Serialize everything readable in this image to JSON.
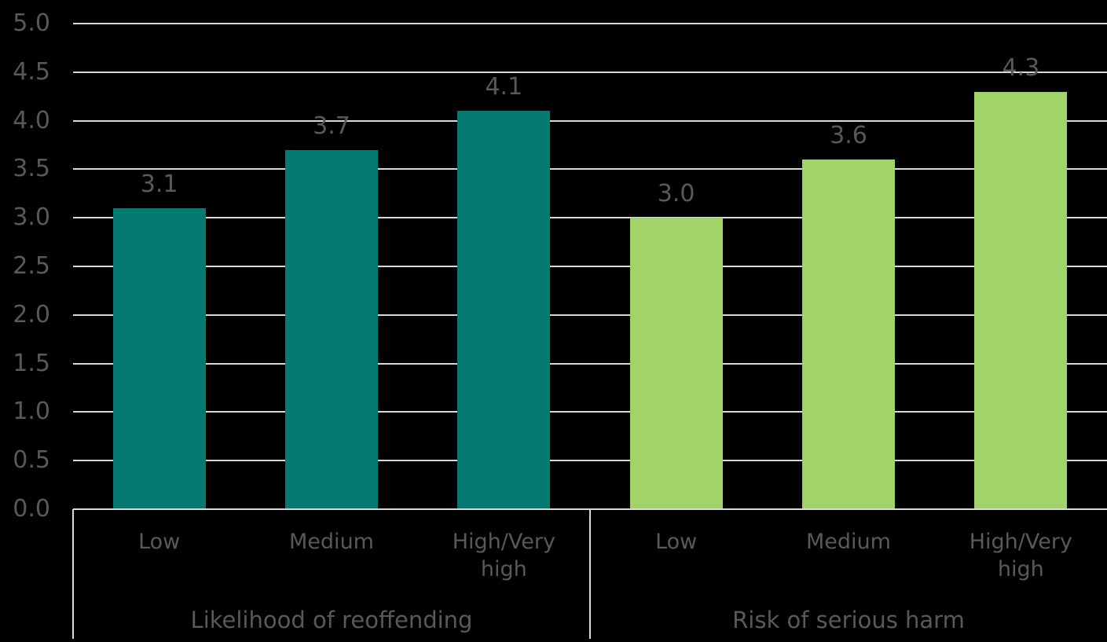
{
  "chart_data": {
    "type": "bar",
    "title": "",
    "y_axis": {
      "min": 0,
      "max": 5,
      "step": 0.5,
      "tick_labels": [
        "0.0",
        "0.5",
        "1.0",
        "1.5",
        "2.0",
        "2.5",
        "3.0",
        "3.5",
        "4.0",
        "4.5",
        "5.0"
      ]
    },
    "categories": [
      "Low",
      "Medium",
      "High/Very high"
    ],
    "series": [
      {
        "name": "Likelihood of reoffending",
        "color": "#047A70",
        "values": [
          3.1,
          3.7,
          4.1
        ],
        "value_labels": [
          "3.1",
          "3.7",
          "4.1"
        ]
      },
      {
        "name": "Risk of serious harm",
        "color": "#A0D468",
        "values": [
          3.0,
          3.6,
          4.3
        ],
        "value_labels": [
          "3.0",
          "3.6",
          "4.3"
        ]
      }
    ],
    "grid": true,
    "legend_position": "none",
    "data_labels": true,
    "colors": {
      "background": "#000000",
      "gridline": "#D9D9D9",
      "axis_line": "#D9D9D9",
      "label_text": "#595959"
    }
  }
}
